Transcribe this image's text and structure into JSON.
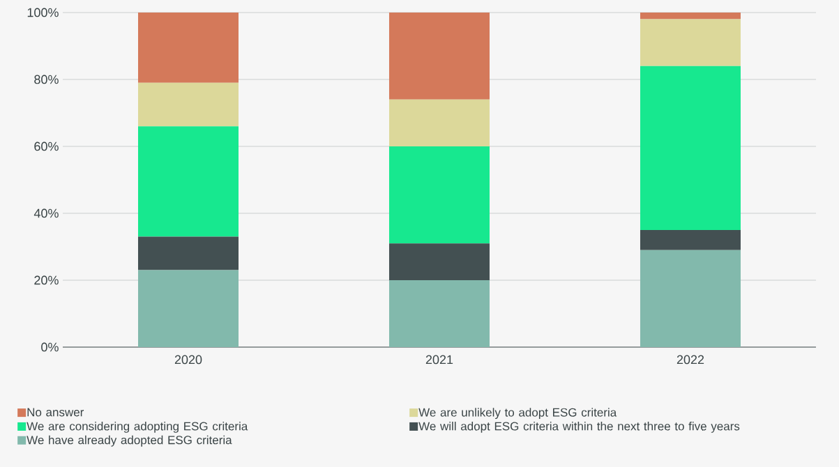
{
  "chart_data": {
    "type": "bar",
    "stacked": true,
    "categories": [
      "2020",
      "2021",
      "2022"
    ],
    "series": [
      {
        "name": "We have already adopted ESG criteria",
        "color": "#82b9ac",
        "values": [
          23,
          20,
          29
        ]
      },
      {
        "name": "We will adopt ESG criteria within the next three to five years",
        "color": "#435052",
        "values": [
          10,
          11,
          6
        ]
      },
      {
        "name": "We are considering adopting ESG criteria",
        "color": "#17e88f",
        "values": [
          33,
          29,
          49
        ]
      },
      {
        "name": "We are unlikely to adopt ESG criteria",
        "color": "#dcd89a",
        "values": [
          13,
          14,
          14
        ]
      },
      {
        "name": "No answer",
        "color": "#d4795a",
        "values": [
          21,
          26,
          2
        ]
      }
    ],
    "ylim": [
      0,
      100
    ],
    "yticks": [
      {
        "value": 0,
        "label": "0%"
      },
      {
        "value": 20,
        "label": "20%"
      },
      {
        "value": 40,
        "label": "40%"
      },
      {
        "value": 60,
        "label": "60%"
      },
      {
        "value": 80,
        "label": "80%"
      },
      {
        "value": 100,
        "label": "100%"
      }
    ],
    "grid": "y",
    "legend": "bottom"
  }
}
